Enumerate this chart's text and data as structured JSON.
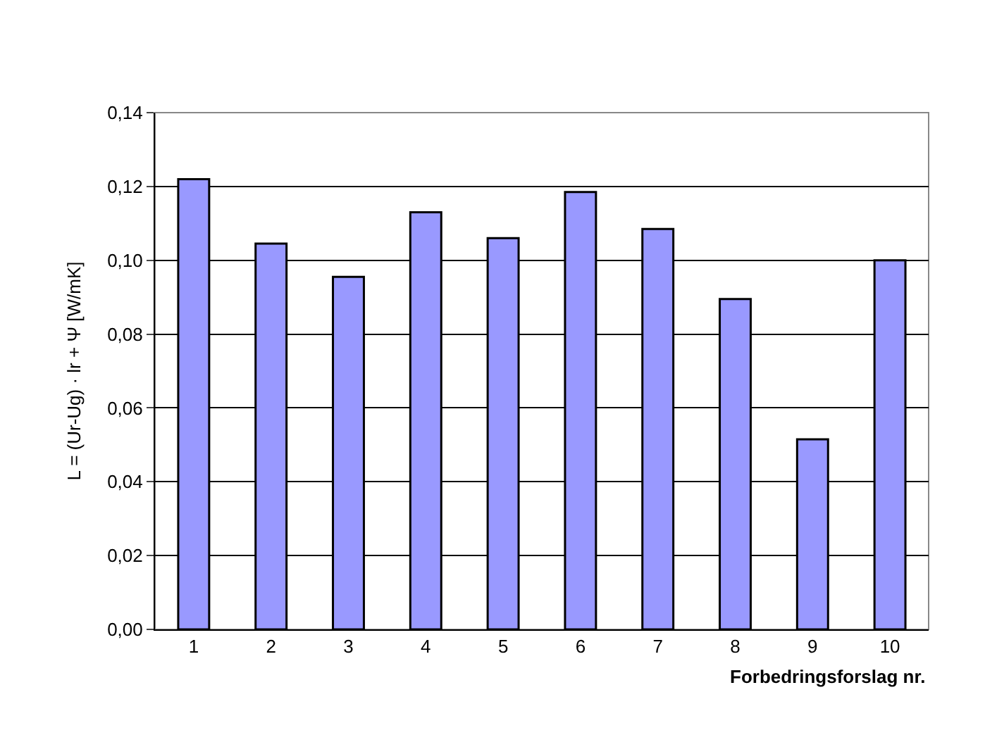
{
  "chart_data": {
    "type": "bar",
    "xlabel": "Forbedringsforslag nr.",
    "ylabel": "L = (Ur-Ug) · lr + Ψ [W/mK]",
    "categories": [
      "1",
      "2",
      "3",
      "4",
      "5",
      "6",
      "7",
      "8",
      "9",
      "10"
    ],
    "values": [
      0.122,
      0.1045,
      0.0955,
      0.113,
      0.106,
      0.1185,
      0.1085,
      0.0895,
      0.0515,
      0.1
    ],
    "color": "#9999ff",
    "ylim": [
      0,
      0.14
    ],
    "yticks": [
      {
        "value": 0,
        "label": "0,00"
      },
      {
        "value": 0.02,
        "label": "0,02"
      },
      {
        "value": 0.04,
        "label": "0,04"
      },
      {
        "value": 0.06,
        "label": "0,06"
      },
      {
        "value": 0.08,
        "label": "0,08"
      },
      {
        "value": 0.1,
        "label": "0,10"
      },
      {
        "value": 0.12,
        "label": "0,12"
      },
      {
        "value": 0.14,
        "label": "0,14"
      }
    ],
    "grid": "y"
  }
}
